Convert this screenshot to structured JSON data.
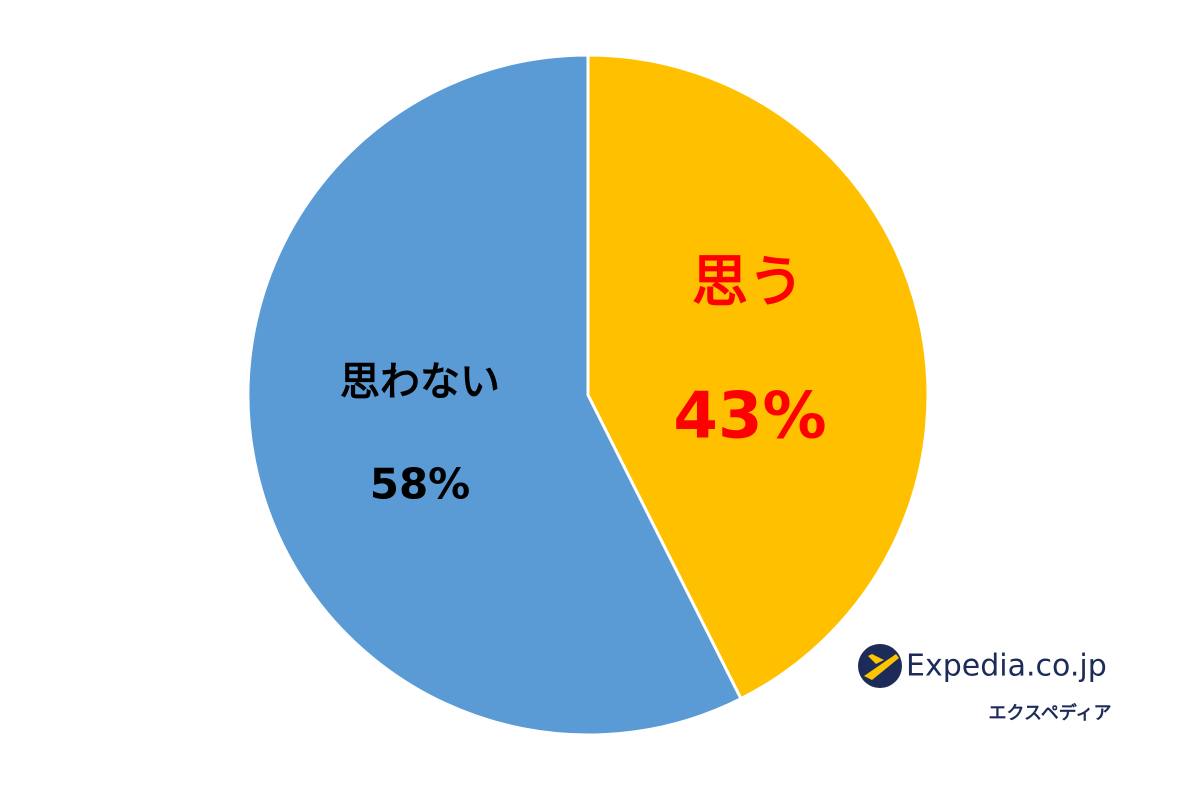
{
  "chart_data": {
    "type": "pie",
    "categories": [
      "思う",
      "思わない"
    ],
    "values": [
      43,
      58
    ],
    "value_labels": [
      "43%",
      "58%"
    ],
    "colors": [
      "#ffc000",
      "#5b9bd5"
    ],
    "label_colors": [
      "#ff0000",
      "#000000"
    ]
  },
  "logo": {
    "name": "Expedia.co.jp",
    "subtitle": "エクスペディア"
  }
}
